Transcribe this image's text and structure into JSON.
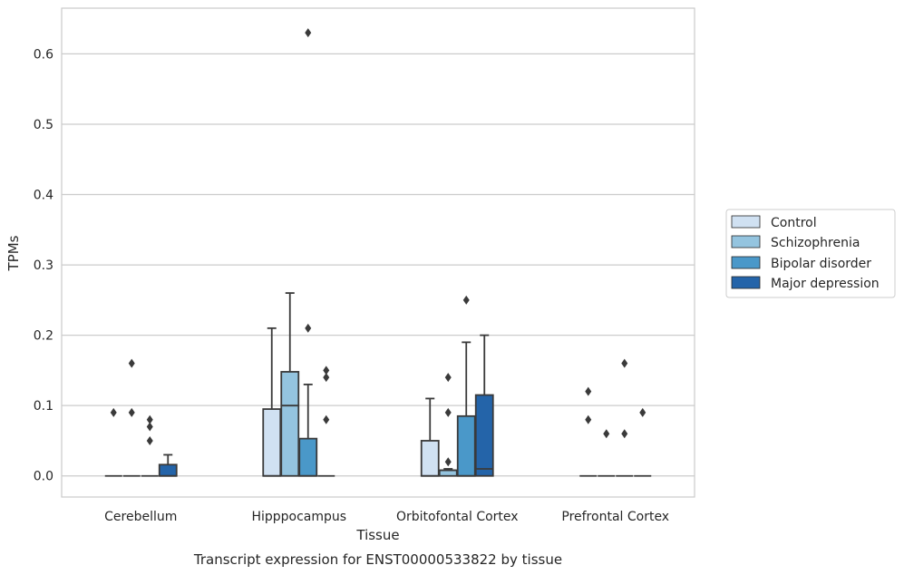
{
  "chart_data": {
    "type": "box",
    "xlabel": "Tissue",
    "ylabel": "TPMs",
    "caption": "Transcript expression for ENST00000533822 by tissue",
    "ylim": [
      -0.03,
      0.665
    ],
    "yticks": [
      0.0,
      0.1,
      0.2,
      0.3,
      0.4,
      0.5,
      0.6
    ],
    "ytick_labels": [
      "0.0",
      "0.1",
      "0.2",
      "0.3",
      "0.4",
      "0.5",
      "0.6"
    ],
    "grid": "horizontal",
    "legend_position": "right",
    "categories": [
      "Cerebellum",
      "Hipppocampus",
      "Orbitofontal Cortex",
      "Prefrontal Cortex"
    ],
    "series": [
      {
        "name": "Control",
        "color": "#d0e1f2",
        "boxes": [
          {
            "q1": 0,
            "median": 0,
            "q3": 0,
            "whisker_low": 0,
            "whisker_high": 0,
            "outliers": [
              0.09
            ]
          },
          {
            "q1": 0,
            "median": 0,
            "q3": 0.095,
            "whisker_low": 0,
            "whisker_high": 0.21,
            "outliers": []
          },
          {
            "q1": 0,
            "median": 0,
            "q3": 0.05,
            "whisker_low": 0,
            "whisker_high": 0.11,
            "outliers": []
          },
          {
            "q1": 0,
            "median": 0,
            "q3": 0,
            "whisker_low": 0,
            "whisker_high": 0,
            "outliers": [
              0.12,
              0.08
            ]
          }
        ]
      },
      {
        "name": "Schizophrenia",
        "color": "#94c4df",
        "boxes": [
          {
            "q1": 0,
            "median": 0,
            "q3": 0,
            "whisker_low": 0,
            "whisker_high": 0,
            "outliers": [
              0.16,
              0.09
            ]
          },
          {
            "q1": 0,
            "median": 0.1,
            "q3": 0.148,
            "whisker_low": 0,
            "whisker_high": 0.26,
            "outliers": []
          },
          {
            "q1": 0,
            "median": 0.008,
            "q3": 0.008,
            "whisker_low": 0,
            "whisker_high": 0.01,
            "outliers": [
              0.14,
              0.09,
              0.02
            ]
          },
          {
            "q1": 0,
            "median": 0,
            "q3": 0,
            "whisker_low": 0,
            "whisker_high": 0,
            "outliers": [
              0.06
            ]
          }
        ]
      },
      {
        "name": "Bipolar disorder",
        "color": "#4a98c9",
        "boxes": [
          {
            "q1": 0,
            "median": 0,
            "q3": 0,
            "whisker_low": 0,
            "whisker_high": 0,
            "outliers": [
              0.08,
              0.07,
              0.05
            ]
          },
          {
            "q1": 0,
            "median": 0,
            "q3": 0.053,
            "whisker_low": 0,
            "whisker_high": 0.13,
            "outliers": [
              0.63,
              0.21
            ]
          },
          {
            "q1": 0,
            "median": 0,
            "q3": 0.085,
            "whisker_low": 0,
            "whisker_high": 0.19,
            "outliers": [
              0.25
            ]
          },
          {
            "q1": 0,
            "median": 0,
            "q3": 0,
            "whisker_low": 0,
            "whisker_high": 0,
            "outliers": [
              0.16,
              0.06
            ]
          }
        ]
      },
      {
        "name": "Major depression",
        "color": "#2464a9",
        "boxes": [
          {
            "q1": 0,
            "median": 0,
            "q3": 0.016,
            "whisker_low": 0,
            "whisker_high": 0.03,
            "outliers": []
          },
          {
            "q1": 0,
            "median": 0,
            "q3": 0,
            "whisker_low": 0,
            "whisker_high": 0,
            "outliers": [
              0.15,
              0.14,
              0.08
            ]
          },
          {
            "q1": 0,
            "median": 0.01,
            "q3": 0.115,
            "whisker_low": 0,
            "whisker_high": 0.2,
            "outliers": []
          },
          {
            "q1": 0,
            "median": 0,
            "q3": 0,
            "whisker_low": 0,
            "whisker_high": 0,
            "outliers": [
              0.09
            ]
          }
        ]
      }
    ]
  }
}
